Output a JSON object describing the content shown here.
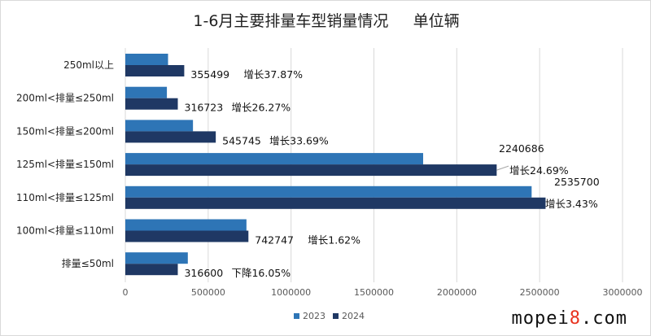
{
  "chart_data": {
    "type": "bar",
    "orientation": "horizontal",
    "title": "1-6月主要排量车型销量情况     单位辆",
    "categories": [
      "250ml以上",
      "200ml<排量≤250ml",
      "150ml<排量≤200ml",
      "125ml<排量≤150ml",
      "110ml<排量≤125ml",
      "100ml<排量≤110ml",
      "排量≤50ml"
    ],
    "series": [
      {
        "name": "2023",
        "color": "#2e75b6",
        "values": [
          257850,
          250830,
          408216,
          1797006,
          2451610,
          730906,
          377129
        ]
      },
      {
        "name": "2024",
        "color": "#1f3864",
        "values": [
          355499,
          316723,
          545745,
          2240686,
          2535700,
          742747,
          316600
        ]
      }
    ],
    "data_labels": [
      {
        "value": "355499",
        "change": "增长37.87%"
      },
      {
        "value": "316723",
        "change": "增长26.27%"
      },
      {
        "value": "545745",
        "change": "增长33.69%"
      },
      {
        "value": "2240686",
        "change": "增长24.69%"
      },
      {
        "value": "2535700",
        "change": "增长3.43%"
      },
      {
        "value": "742747",
        "change": "增长1.62%"
      },
      {
        "value": "316600",
        "change": "下降16.05%"
      }
    ],
    "xlim": [
      0,
      3000000
    ],
    "xticks": [
      "0",
      "500000",
      "1000000",
      "1500000",
      "2000000",
      "2500000",
      "3000000"
    ],
    "grid": true,
    "legend": "bottom"
  },
  "watermark": {
    "prefix": "mopei",
    "highlight": "8",
    "suffix": ".com"
  }
}
